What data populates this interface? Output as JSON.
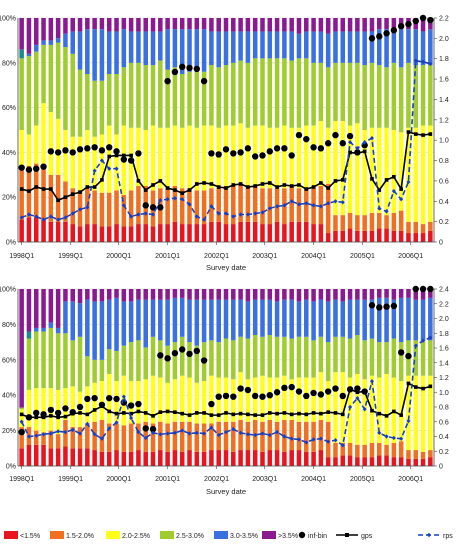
{
  "chart_data": [
    {
      "type": "bar",
      "stacked": true,
      "bar_count": 57,
      "categories": [
        "1998Q1",
        "1999Q1",
        "2000Q1",
        "2001Q1",
        "2002Q1",
        "2003Q1",
        "2004Q1",
        "2005Q1",
        "2006Q1"
      ],
      "category_positions": [
        0,
        6.7,
        13.3,
        20,
        26.7,
        33.3,
        40,
        46.7,
        53.3
      ],
      "xlabel": "Survey date",
      "ylim": [
        0,
        100
      ],
      "y_ticks": [
        "0%",
        "20%",
        "40%",
        "60%",
        "80%",
        "100%"
      ],
      "y2lim": [
        0,
        2.2
      ],
      "y2_ticks": [
        "0",
        "0.2",
        "0.4",
        "0.6",
        "0.8",
        "1.0",
        "1.2",
        "1.4",
        "1.6",
        "1.8",
        "2.0",
        "2.2"
      ],
      "stack_order": [
        "<1.5%",
        "1.5-2.0%",
        "2.0-2.5%",
        "2.5-3.0%",
        "3.0-3.5%",
        ">3.5%"
      ],
      "stack_bounds": [
        [
          10,
          11,
          11,
          10,
          9,
          9,
          9,
          8,
          7,
          8,
          8,
          7,
          7,
          8,
          7,
          7,
          8,
          8,
          7,
          8,
          8,
          9,
          8,
          8,
          8,
          8,
          9,
          9,
          8,
          8,
          9,
          9,
          9,
          8,
          8,
          9,
          8,
          9,
          9,
          9,
          8,
          8,
          4,
          5,
          5,
          6,
          5,
          5,
          5,
          6,
          6,
          5,
          5,
          4,
          4,
          4,
          5
        ],
        [
          33,
          34,
          35,
          33,
          30,
          30,
          27,
          24,
          23,
          24,
          23,
          22,
          22,
          23,
          21,
          23,
          25,
          25,
          23,
          24,
          24,
          25,
          24,
          24,
          23,
          23,
          24,
          24,
          25,
          25,
          26,
          25,
          25,
          24,
          24,
          24,
          24,
          25,
          24,
          24,
          25,
          25,
          26,
          12,
          12,
          13,
          12,
          12,
          13,
          13,
          12,
          13,
          14,
          9,
          9,
          8,
          9
        ],
        [
          50,
          48,
          52,
          62,
          58,
          55,
          50,
          47,
          47,
          50,
          47,
          48,
          52,
          48,
          52,
          51,
          51,
          50,
          52,
          51,
          51,
          52,
          51,
          52,
          51,
          52,
          52,
          51,
          52,
          52,
          53,
          51,
          52,
          52,
          51,
          51,
          52,
          51,
          51,
          52,
          52,
          54,
          51,
          54,
          54,
          52,
          53,
          50,
          51,
          51,
          51,
          50,
          49,
          51,
          51,
          52,
          52
        ],
        [
          82,
          83,
          85,
          88,
          88,
          89,
          87,
          84,
          77,
          75,
          72,
          72,
          75,
          75,
          78,
          80,
          80,
          79,
          79,
          81,
          77,
          78,
          75,
          76,
          77,
          76,
          79,
          78,
          79,
          80,
          81,
          80,
          82,
          82,
          82,
          82,
          82,
          81,
          82,
          82,
          80,
          80,
          78,
          80,
          80,
          80,
          80,
          79,
          80,
          79,
          78,
          80,
          78,
          80,
          79,
          79,
          79
        ],
        [
          86,
          84,
          88,
          90,
          90,
          91,
          93,
          94,
          94,
          95,
          95,
          95,
          94,
          94,
          95,
          94,
          94,
          94,
          94,
          94,
          95,
          95,
          95,
          95,
          95,
          95,
          94,
          94,
          94,
          94,
          94,
          94,
          94,
          94,
          94,
          94,
          94,
          94,
          93,
          94,
          94,
          94,
          93,
          94,
          94,
          94,
          94,
          94,
          94,
          95,
          95,
          95,
          95,
          95,
          95,
          94,
          95
        ],
        [
          100,
          100,
          100,
          100,
          100,
          100,
          100,
          100,
          100,
          100,
          100,
          100,
          100,
          100,
          100,
          100,
          100,
          100,
          100,
          100,
          100,
          100,
          100,
          100,
          100,
          100,
          100,
          100,
          100,
          100,
          100,
          100,
          100,
          100,
          100,
          100,
          100,
          100,
          100,
          100,
          100,
          100,
          100,
          100,
          100,
          100,
          100,
          100,
          100,
          100,
          100,
          100,
          100,
          100,
          100,
          100,
          100
        ]
      ],
      "series_right_axis": [
        {
          "name": "inf-bin",
          "style": "dots",
          "values": [
            0.73,
            0.71,
            0.72,
            0.74,
            0.89,
            0.88,
            0.9,
            0.88,
            0.91,
            0.92,
            0.93,
            0.9,
            0.93,
            0.89,
            0.81,
            0.8,
            0.87,
            0.36,
            0.34,
            0.34,
            1.58,
            1.67,
            1.72,
            1.71,
            1.7,
            1.58,
            0.87,
            0.86,
            0.91,
            0.87,
            0.88,
            0.92,
            0.84,
            0.85,
            0.89,
            0.92,
            0.92,
            0.85,
            1.05,
            1.01,
            0.93,
            0.92,
            0.97,
            1.05,
            0.97,
            1.04,
            0.88,
            0.95,
            2.0,
            2.02,
            2.05,
            2.08,
            2.12,
            2.14,
            2.17,
            2.2,
            2.18
          ]
        },
        {
          "name": "gps",
          "style": "line-square",
          "values": [
            0.52,
            0.5,
            0.54,
            0.52,
            0.52,
            0.41,
            0.44,
            0.47,
            0.49,
            0.54,
            0.54,
            0.61,
            0.84,
            0.85,
            0.85,
            0.85,
            0.6,
            0.51,
            0.56,
            0.6,
            0.53,
            0.51,
            0.48,
            0.51,
            0.57,
            0.58,
            0.57,
            0.54,
            0.53,
            0.56,
            0.57,
            0.54,
            0.55,
            0.57,
            0.58,
            0.54,
            0.56,
            0.55,
            0.56,
            0.52,
            0.54,
            0.58,
            0.53,
            0.6,
            0.61,
            0.88,
            0.87,
            0.89,
            0.62,
            0.51,
            0.61,
            0.64,
            0.52,
            1.08,
            1.06,
            1.05,
            1.06
          ]
        },
        {
          "name": "rps",
          "style": "dash-arrow",
          "values": [
            0.24,
            0.27,
            0.25,
            0.22,
            0.25,
            0.22,
            0.24,
            0.28,
            0.32,
            0.34,
            0.7,
            0.8,
            0.72,
            0.72,
            0.36,
            0.25,
            0.27,
            0.28,
            0.27,
            0.41,
            0.42,
            0.43,
            0.42,
            0.37,
            0.25,
            0.22,
            0.35,
            0.28,
            0.28,
            0.25,
            0.27,
            0.27,
            0.28,
            0.29,
            0.33,
            0.35,
            0.36,
            0.4,
            0.37,
            0.38,
            0.36,
            0.35,
            0.38,
            0.4,
            0.39,
            0.98,
            0.92,
            0.98,
            1.02,
            0.33,
            0.3,
            0.5,
            0.42,
            0.59,
            1.78,
            1.77,
            1.75
          ]
        }
      ]
    },
    {
      "type": "bar",
      "stacked": true,
      "bar_count": 57,
      "categories": [
        "1998Q1",
        "1999Q1",
        "2000Q1",
        "2001Q1",
        "2002Q1",
        "2003Q1",
        "2004Q1",
        "2005Q1",
        "2006Q1"
      ],
      "category_positions": [
        0,
        6.7,
        13.3,
        20,
        26.7,
        33.3,
        40,
        46.7,
        53.3
      ],
      "xlabel": "Survey date",
      "ylim": [
        0,
        100
      ],
      "y_ticks": [
        "0%",
        "20%",
        "40%",
        "60%",
        "80%",
        "100%"
      ],
      "y2lim": [
        0,
        2.4
      ],
      "y2_ticks": [
        "0",
        "0.2",
        "0.4",
        "0.6",
        "0.8",
        "1.0",
        "1.2",
        "1.4",
        "1.6",
        "1.8",
        "2.0",
        "2.2",
        "2.4"
      ],
      "stack_order": [
        "<1.5%",
        "1.5-2.0%",
        "2.0-2.5%",
        "2.5-3.0%",
        "3.0-3.5%",
        ">3.5%"
      ],
      "stack_bounds": [
        [
          10,
          12,
          12,
          12,
          10,
          10,
          11,
          10,
          10,
          10,
          9,
          8,
          8,
          9,
          8,
          8,
          9,
          8,
          8,
          9,
          8,
          9,
          8,
          9,
          8,
          8,
          9,
          9,
          9,
          8,
          9,
          9,
          9,
          8,
          9,
          9,
          8,
          9,
          9,
          8,
          8,
          9,
          5,
          5,
          6,
          6,
          5,
          5,
          5,
          6,
          6,
          5,
          5,
          4,
          4,
          4,
          5
        ],
        [
          22,
          22,
          20,
          19,
          20,
          18,
          26,
          22,
          22,
          24,
          25,
          26,
          24,
          24,
          23,
          24,
          24,
          25,
          24,
          25,
          24,
          25,
          25,
          25,
          24,
          24,
          24,
          25,
          25,
          25,
          26,
          25,
          26,
          25,
          26,
          25,
          26,
          26,
          25,
          25,
          25,
          26,
          25,
          13,
          13,
          13,
          12,
          12,
          13,
          13,
          12,
          13,
          14,
          9,
          9,
          8,
          9
        ],
        [
          32,
          43,
          44,
          44,
          44,
          43,
          44,
          45,
          42,
          45,
          47,
          48,
          52,
          48,
          51,
          48,
          48,
          49,
          51,
          50,
          47,
          49,
          51,
          50,
          47,
          48,
          51,
          50,
          50,
          49,
          53,
          49,
          50,
          51,
          50,
          50,
          51,
          49,
          50,
          50,
          50,
          53,
          48,
          53,
          53,
          50,
          52,
          49,
          51,
          50,
          52,
          50,
          48,
          51,
          51,
          51,
          51
        ],
        [
          33,
          72,
          76,
          76,
          78,
          75,
          75,
          71,
          73,
          62,
          60,
          60,
          66,
          65,
          68,
          70,
          71,
          67,
          73,
          71,
          68,
          70,
          73,
          70,
          68,
          70,
          71,
          70,
          72,
          71,
          73,
          72,
          74,
          73,
          74,
          73,
          73,
          72,
          73,
          73,
          71,
          73,
          70,
          73,
          73,
          72,
          74,
          71,
          72,
          70,
          70,
          72,
          70,
          71,
          71,
          71,
          71
        ],
        [
          33,
          76,
          78,
          78,
          81,
          78,
          93,
          93,
          92,
          94,
          93,
          93,
          94,
          95,
          93,
          93,
          94,
          94,
          94,
          94,
          94,
          95,
          95,
          94,
          94,
          94,
          94,
          94,
          94,
          94,
          94,
          93,
          94,
          94,
          94,
          93,
          94,
          94,
          93,
          94,
          93,
          94,
          93,
          94,
          93,
          94,
          94,
          94,
          94,
          95,
          95,
          94,
          95,
          95,
          94,
          94,
          95
        ],
        [
          100,
          100,
          100,
          100,
          100,
          100,
          100,
          100,
          100,
          100,
          100,
          100,
          100,
          100,
          100,
          100,
          100,
          100,
          100,
          100,
          100,
          100,
          100,
          100,
          100,
          100,
          100,
          100,
          100,
          100,
          100,
          100,
          100,
          100,
          100,
          100,
          100,
          100,
          100,
          100,
          100,
          100,
          100,
          100,
          100,
          100,
          100,
          100,
          100,
          100,
          100,
          100,
          100,
          100,
          100,
          100,
          100
        ]
      ],
      "series_right_axis": [
        {
          "name": "inf-bin",
          "style": "dots",
          "values": [
            0.46,
            0.66,
            0.72,
            0.7,
            0.76,
            0.72,
            0.78,
            0.73,
            0.8,
            0.91,
            0.92,
            0.83,
            0.92,
            0.91,
            0.86,
            0.82,
            0.84,
            0.51,
            0.5,
            1.5,
            1.46,
            1.53,
            1.58,
            1.52,
            1.56,
            1.43,
            0.84,
            0.94,
            0.95,
            0.94,
            1.05,
            1.03,
            0.95,
            0.94,
            0.96,
            1.0,
            1.06,
            1.07,
            1.01,
            0.95,
            0.99,
            0.97,
            1.01,
            1.05,
            0.95,
            1.04,
            1.05,
            1.01,
            2.18,
            2.15,
            2.16,
            2.17,
            1.54,
            1.49,
            2.4,
            2.4,
            2.4
          ]
        },
        {
          "name": "gps",
          "style": "line-square",
          "values": [
            0.7,
            0.66,
            0.66,
            0.66,
            0.68,
            0.66,
            0.67,
            0.71,
            0.72,
            0.7,
            0.76,
            0.81,
            0.74,
            0.71,
            0.72,
            0.71,
            0.74,
            0.72,
            0.68,
            0.73,
            0.74,
            0.73,
            0.71,
            0.69,
            0.72,
            0.72,
            0.69,
            0.69,
            0.72,
            0.7,
            0.71,
            0.7,
            0.69,
            0.69,
            0.72,
            0.71,
            0.72,
            0.7,
            0.71,
            0.7,
            0.72,
            0.71,
            0.73,
            0.72,
            0.7,
            1.04,
            1.0,
            1.01,
            0.75,
            0.71,
            0.68,
            0.74,
            0.69,
            1.12,
            1.07,
            1.05,
            1.08
          ]
        },
        {
          "name": "rps",
          "style": "dash-arrow",
          "values": [
            0.6,
            0.4,
            0.41,
            0.43,
            0.44,
            0.47,
            0.46,
            0.49,
            0.44,
            0.57,
            0.43,
            0.37,
            0.51,
            0.59,
            0.94,
            0.65,
            0.46,
            0.38,
            0.45,
            0.43,
            0.44,
            0.45,
            0.48,
            0.44,
            0.45,
            0.44,
            0.52,
            0.42,
            0.46,
            0.5,
            0.45,
            0.43,
            0.42,
            0.44,
            0.42,
            0.46,
            0.4,
            0.37,
            0.36,
            0.32,
            0.36,
            0.37,
            0.33,
            0.35,
            0.28,
            0.8,
            0.92,
            0.77,
            1.15,
            0.45,
            0.4,
            0.38,
            0.37,
            0.61,
            1.63,
            1.7,
            1.74
          ]
        }
      ]
    }
  ],
  "legend": [
    {
      "label": "<1.5%",
      "color": "#e8141e",
      "kind": "swatch"
    },
    {
      "label": "1.5-2.0%",
      "color": "#f07020",
      "kind": "swatch"
    },
    {
      "label": "2.0-2.5%",
      "color": "#ffff1a",
      "kind": "swatch"
    },
    {
      "label": "2.5-3.0%",
      "color": "#a0cc30",
      "kind": "swatch"
    },
    {
      "label": "3.0-3.5%",
      "color": "#3a70e0",
      "kind": "swatch"
    },
    {
      "label": ">3.5%",
      "color": "#8a1a90",
      "kind": "swatch"
    },
    {
      "label": "inf-bin",
      "color": "#000000",
      "kind": "dot"
    },
    {
      "label": "gps",
      "color": "#000000",
      "kind": "line-square"
    },
    {
      "label": "rps",
      "color": "#1840c0",
      "kind": "dash-arrow"
    }
  ],
  "colors": {
    "lt15": "#e8141e",
    "c15_20": "#f07020",
    "c20_25": "#ffff1a",
    "c25_30": "#a0cc30",
    "c30_35": "#3a70e0",
    "gt35": "#8a1a90",
    "teal": "#1a8a8a",
    "gps": "#000000",
    "rps": "#1840c0",
    "dots": "#000000"
  }
}
